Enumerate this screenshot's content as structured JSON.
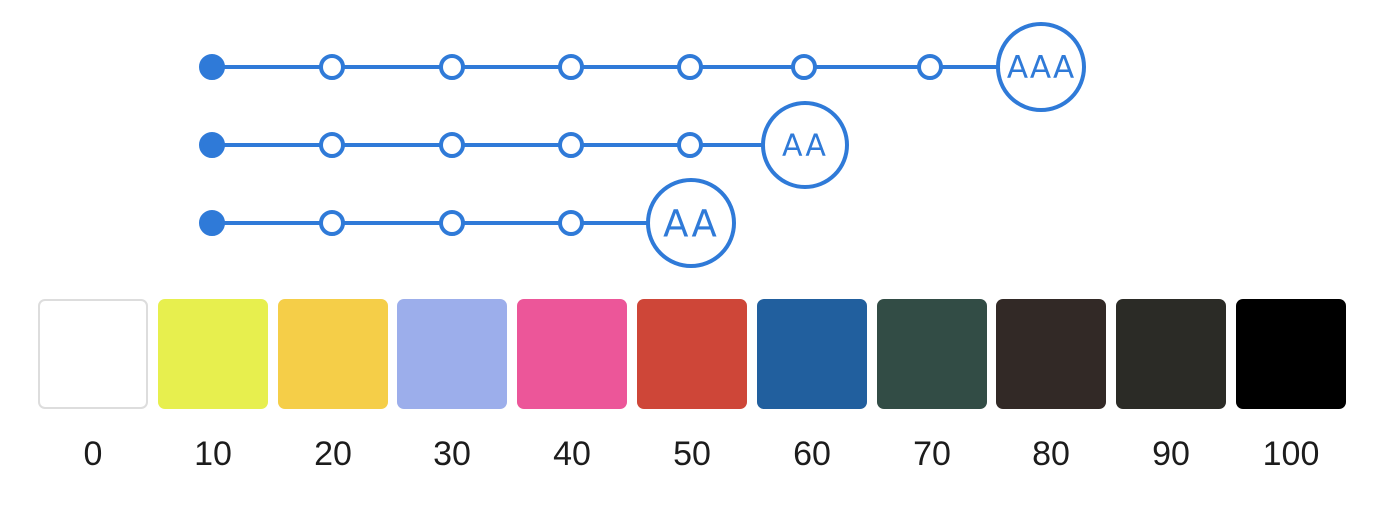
{
  "colors": {
    "accent": "#2F7AD8",
    "node_fill": "#ffffff",
    "label_text": "#1c1c1c",
    "white_swatch_border": "#dddddd"
  },
  "tracks": [
    {
      "level": "AAA",
      "badge_label": "AAA",
      "steps": 7
    },
    {
      "level": "AA",
      "badge_label": "AA",
      "steps": 5
    },
    {
      "level": "AA",
      "badge_label": "AA",
      "steps": 4
    }
  ],
  "swatches": [
    {
      "label": "0",
      "color": "#FFFFFF"
    },
    {
      "label": "10",
      "color": "#E7EF4E"
    },
    {
      "label": "20",
      "color": "#F5CE48"
    },
    {
      "label": "30",
      "color": "#9CAEEB"
    },
    {
      "label": "40",
      "color": "#EC5699"
    },
    {
      "label": "50",
      "color": "#CE4638"
    },
    {
      "label": "60",
      "color": "#215F9E"
    },
    {
      "label": "70",
      "color": "#324C45"
    },
    {
      "label": "80",
      "color": "#322926"
    },
    {
      "label": "90",
      "color": "#2B2B26"
    },
    {
      "label": "100",
      "color": "#000000"
    }
  ]
}
